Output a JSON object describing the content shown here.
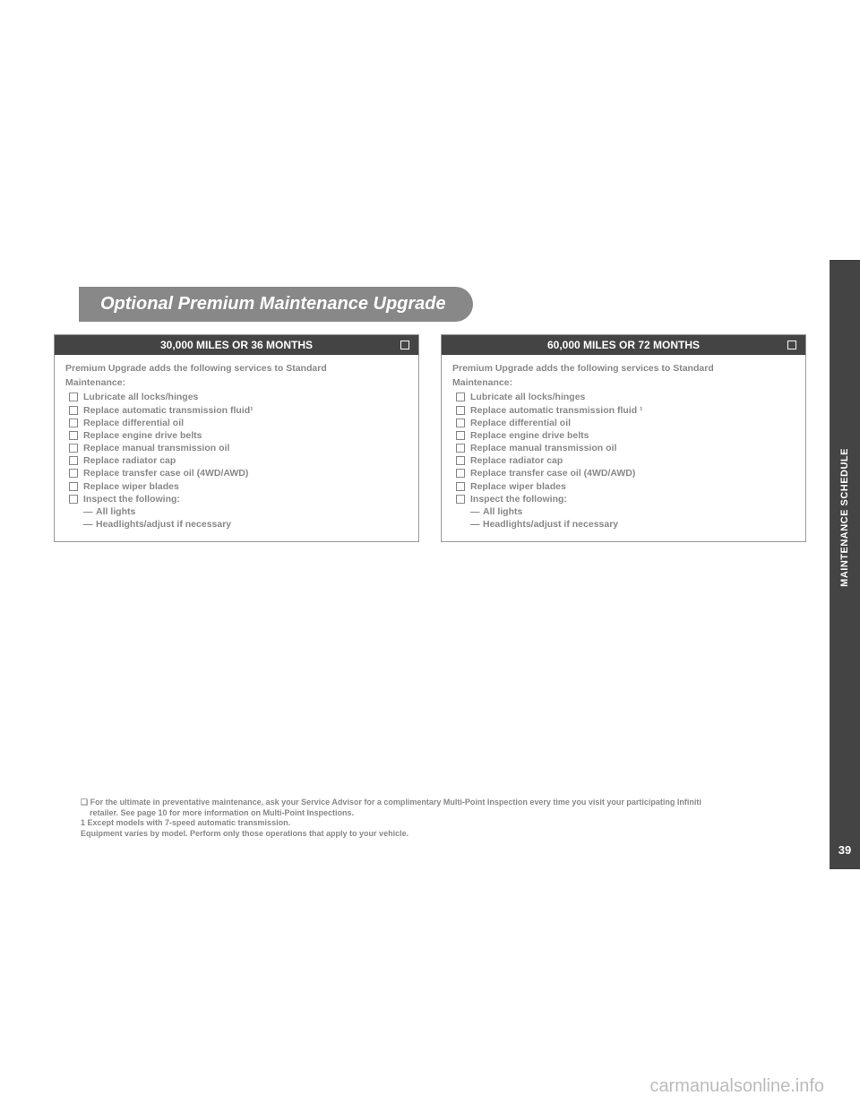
{
  "title": "Optional Premium Maintenance Upgrade",
  "sideTab": {
    "label": "MAINTENANCE SCHEDULE",
    "page": "39"
  },
  "watermark": "carmanualsonline.info",
  "leftCard": {
    "header": "30,000 MILES OR 36 MONTHS",
    "introLine1": "Premium Upgrade adds the following services to Standard",
    "introLine2": "Maintenance:",
    "services": [
      "Lubricate all locks/hinges",
      "Replace automatic transmission fluid¹",
      "Replace differential oil",
      "Replace engine drive belts",
      "Replace manual transmission oil",
      "Replace radiator cap",
      "Replace transfer case oil (4WD/AWD)",
      "Replace wiper blades",
      "Inspect the following:"
    ],
    "subServices": [
      "All lights",
      "Headlights/adjust if necessary"
    ]
  },
  "rightCard": {
    "header": "60,000 MILES OR 72 MONTHS",
    "introLine1": "Premium Upgrade adds the following services to Standard",
    "introLine2": "Maintenance:",
    "services": [
      "Lubricate all locks/hinges",
      "Replace automatic transmission fluid ¹",
      "Replace differential oil",
      "Replace engine drive belts",
      "Replace manual transmission oil",
      "Replace radiator cap",
      "Replace transfer case oil (4WD/AWD)",
      "Replace wiper blades",
      "Inspect the following:"
    ],
    "subServices": [
      "All lights",
      "Headlights/adjust if necessary"
    ]
  },
  "footnotes": {
    "l1": "❏ For the ultimate in preventative maintenance, ask your Service Advisor for a complimentary Multi-Point Inspection every time you visit your participating Infiniti",
    "l2": "retailer. See page 10 for more information on Multi-Point Inspections.",
    "l3": "1 Except models with 7-speed automatic transmission.",
    "l4": "Equipment varies by model. Perform only those operations that apply to your vehicle."
  }
}
